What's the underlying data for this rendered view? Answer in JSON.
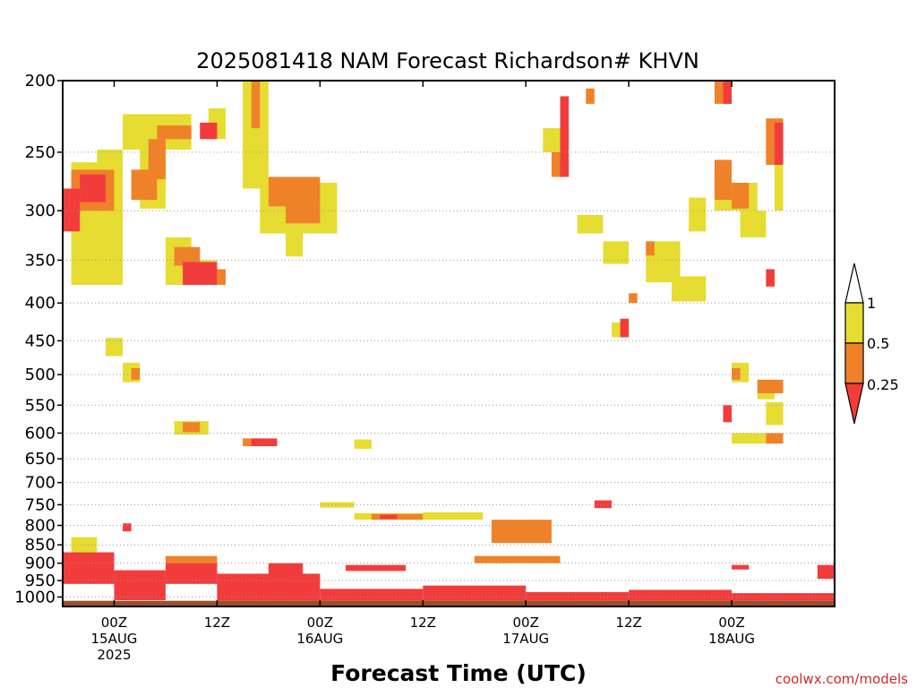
{
  "chart_data": {
    "type": "heatmap",
    "title": "2025081418 NAM Forecast Richardson# KHVN",
    "xlabel": "Forecast Time (UTC)",
    "ylabel": "",
    "y_scale": "log",
    "y_inverted": true,
    "y_range": [
      200,
      1030
    ],
    "x_range": [
      "2025-08-14T18Z",
      "2025-08-18T12Z"
    ],
    "y_ticks": [
      200,
      250,
      300,
      350,
      400,
      450,
      500,
      550,
      600,
      650,
      700,
      750,
      800,
      850,
      900,
      950,
      1000
    ],
    "y_tick_labels": [
      "200",
      "250",
      "300",
      "350",
      "400",
      "450",
      "500",
      "550",
      "600",
      "650",
      "700",
      "750",
      "800",
      "850",
      "900",
      "950",
      "1000"
    ],
    "x_ticks": [
      {
        "time": "2025-08-15T00Z",
        "label1": "00Z",
        "label2": "15AUG",
        "label3": "2025"
      },
      {
        "time": "2025-08-15T12Z",
        "label1": "12Z",
        "label2": "",
        "label3": ""
      },
      {
        "time": "2025-08-16T00Z",
        "label1": "00Z",
        "label2": "16AUG",
        "label3": ""
      },
      {
        "time": "2025-08-16T12Z",
        "label1": "12Z",
        "label2": "",
        "label3": ""
      },
      {
        "time": "2025-08-17T00Z",
        "label1": "00Z",
        "label2": "17AUG",
        "label3": ""
      },
      {
        "time": "2025-08-17T12Z",
        "label1": "12Z",
        "label2": "",
        "label3": ""
      },
      {
        "time": "2025-08-18T00Z",
        "label1": "00Z",
        "label2": "18AUG",
        "label3": ""
      }
    ],
    "grid": "horizontal dotted",
    "legend": {
      "placement": "right",
      "tick_labels": [
        "1",
        "0.5",
        "0.25"
      ],
      "colors": {
        "lt_0.25": "#f23c3c",
        "0.25_0.5": "#ef8228",
        "0.5_1": "#e6dc32",
        "gt_1": "#ffffff"
      }
    },
    "ground_color": "#96502a",
    "series": [
      {
        "class": "0.5_1",
        "regions": [
          {
            "t": [
              "2025-08-14T19Z",
              "2025-08-15T01Z"
            ],
            "p": [
              258,
              378
            ]
          },
          {
            "t": [
              "2025-08-14T22Z",
              "2025-08-15T01Z"
            ],
            "p": [
              248,
              262
            ]
          },
          {
            "t": [
              "2025-08-15T01Z",
              "2025-08-15T09Z"
            ],
            "p": [
              222,
              248
            ]
          },
          {
            "t": [
              "2025-08-15T03Z",
              "2025-08-15T06Z"
            ],
            "p": [
              240,
              298
            ]
          },
          {
            "t": [
              "2025-08-15T06Z",
              "2025-08-15T09Z"
            ],
            "p": [
              326,
              378
            ]
          },
          {
            "t": [
              "2025-08-15T08Z",
              "2025-08-15T12Z"
            ],
            "p": [
              350,
              378
            ]
          },
          {
            "t": [
              "2025-08-15T11Z",
              "2025-08-15T13Z"
            ],
            "p": [
              218,
              240
            ]
          },
          {
            "t": [
              "2025-08-15T15Z",
              "2025-08-15T18Z"
            ],
            "p": [
              200,
              280
            ]
          },
          {
            "t": [
              "2025-08-15T17Z",
              "2025-08-16T02Z"
            ],
            "p": [
              275,
              322
            ]
          },
          {
            "t": [
              "2025-08-15T20Z",
              "2025-08-15T22Z"
            ],
            "p": [
              316,
              346
            ]
          },
          {
            "t": [
              "2025-08-14T23Z",
              "2025-08-15T01Z"
            ],
            "p": [
              446,
              472
            ]
          },
          {
            "t": [
              "2025-08-15T01Z",
              "2025-08-15T03Z"
            ],
            "p": [
              482,
              512
            ]
          },
          {
            "t": [
              "2025-08-15T07Z",
              "2025-08-15T11Z"
            ],
            "p": [
              578,
              603
            ]
          },
          {
            "t": [
              "2025-08-16T00Z",
              "2025-08-16T04Z"
            ],
            "p": [
              744,
              757
            ]
          },
          {
            "t": [
              "2025-08-16T04Z",
              "2025-08-16T12Z"
            ],
            "p": [
              770,
              786
            ]
          },
          {
            "t": [
              "2025-08-16T12Z",
              "2025-08-16T19Z"
            ],
            "p": [
              768,
              786
            ]
          },
          {
            "t": [
              "2025-08-17T02Z",
              "2025-08-17T05Z"
            ],
            "p": [
              232,
              250
            ]
          },
          {
            "t": [
              "2025-08-17T06Z",
              "2025-08-17T09Z"
            ],
            "p": [
              304,
              322
            ]
          },
          {
            "t": [
              "2025-08-17T09Z",
              "2025-08-17T12Z"
            ],
            "p": [
              330,
              354
            ]
          },
          {
            "t": [
              "2025-08-17T14Z",
              "2025-08-17T18Z"
            ],
            "p": [
              330,
              375
            ]
          },
          {
            "t": [
              "2025-08-17T17Z",
              "2025-08-17T21Z"
            ],
            "p": [
              368,
              398
            ]
          },
          {
            "t": [
              "2025-08-17T19Z",
              "2025-08-17T21Z"
            ],
            "p": [
              288,
              320
            ]
          },
          {
            "t": [
              "2025-08-17T22Z",
              "2025-08-18T03Z"
            ],
            "p": [
              275,
              300
            ]
          },
          {
            "t": [
              "2025-08-18T01Z",
              "2025-08-18T04Z"
            ],
            "p": [
              300,
              326
            ]
          },
          {
            "t": [
              "2025-08-18T05Z",
              "2025-08-18T06Z"
            ],
            "p": [
              250,
              300
            ]
          },
          {
            "t": [
              "2025-08-18T00Z",
              "2025-08-18T02Z"
            ],
            "p": [
              482,
              512
            ]
          },
          {
            "t": [
              "2025-08-18T03Z",
              "2025-08-18T05Z"
            ],
            "p": [
              508,
              540
            ]
          },
          {
            "t": [
              "2025-08-18T04Z",
              "2025-08-18T06Z"
            ],
            "p": [
              545,
              585
            ]
          },
          {
            "t": [
              "2025-08-18T00Z",
              "2025-08-18T04Z"
            ],
            "p": [
              600,
              620
            ]
          },
          {
            "t": [
              "2025-08-17T10Z",
              "2025-08-17T12Z"
            ],
            "p": [
              425,
              445
            ]
          },
          {
            "t": [
              "2025-08-14T19Z",
              "2025-08-14T22Z"
            ],
            "p": [
              830,
              905
            ]
          },
          {
            "t": [
              "2025-08-16T04Z",
              "2025-08-16T06Z"
            ],
            "p": [
              612,
              630
            ]
          }
        ]
      },
      {
        "class": "0.25_0.5",
        "regions": [
          {
            "t": [
              "2025-08-14T19Z",
              "2025-08-15T00Z"
            ],
            "p": [
              264,
              300
            ]
          },
          {
            "t": [
              "2025-08-15T02Z",
              "2025-08-15T05Z"
            ],
            "p": [
              264,
              290
            ]
          },
          {
            "t": [
              "2025-08-15T05Z",
              "2025-08-15T09Z"
            ],
            "p": [
              230,
              240
            ]
          },
          {
            "t": [
              "2025-08-15T04Z",
              "2025-08-15T06Z"
            ],
            "p": [
              240,
              272
            ]
          },
          {
            "t": [
              "2025-08-15T07Z",
              "2025-08-15T10Z"
            ],
            "p": [
              336,
              356
            ]
          },
          {
            "t": [
              "2025-08-15T12Z",
              "2025-08-15T13Z"
            ],
            "p": [
              360,
              378
            ]
          },
          {
            "t": [
              "2025-08-15T16Z",
              "2025-08-15T17Z"
            ],
            "p": [
              200,
              232
            ]
          },
          {
            "t": [
              "2025-08-15T18Z",
              "2025-08-16T00Z"
            ],
            "p": [
              270,
              296
            ]
          },
          {
            "t": [
              "2025-08-15T20Z",
              "2025-08-16T00Z"
            ],
            "p": [
              296,
              312
            ]
          },
          {
            "t": [
              "2025-08-15T02Z",
              "2025-08-15T03Z"
            ],
            "p": [
              490,
              508
            ]
          },
          {
            "t": [
              "2025-08-15T08Z",
              "2025-08-15T10Z"
            ],
            "p": [
              580,
              598
            ]
          },
          {
            "t": [
              "2025-08-15T15Z",
              "2025-08-15T17Z"
            ],
            "p": [
              610,
              625
            ]
          },
          {
            "t": [
              "2025-08-16T06Z",
              "2025-08-16T12Z"
            ],
            "p": [
              772,
              786
            ]
          },
          {
            "t": [
              "2025-08-16T20Z",
              "2025-08-17T03Z"
            ],
            "p": [
              786,
              845
            ]
          },
          {
            "t": [
              "2025-08-17T03Z",
              "2025-08-17T05Z"
            ],
            "p": [
              250,
              270
            ]
          },
          {
            "t": [
              "2025-08-17T07Z",
              "2025-08-17T08Z"
            ],
            "p": [
              205,
              215
            ]
          },
          {
            "t": [
              "2025-08-17T12Z",
              "2025-08-17T13Z"
            ],
            "p": [
              388,
              400
            ]
          },
          {
            "t": [
              "2025-08-17T14Z",
              "2025-08-17T15Z"
            ],
            "p": [
              330,
              345
            ]
          },
          {
            "t": [
              "2025-08-17T22Z",
              "2025-08-18T00Z"
            ],
            "p": [
              256,
              290
            ]
          },
          {
            "t": [
              "2025-08-18T00Z",
              "2025-08-18T02Z"
            ],
            "p": [
              275,
              298
            ]
          },
          {
            "t": [
              "2025-08-18T03Z",
              "2025-08-18T06Z"
            ],
            "p": [
              508,
              530
            ]
          },
          {
            "t": [
              "2025-08-18T04Z",
              "2025-08-18T06Z"
            ],
            "p": [
              225,
              260
            ]
          },
          {
            "t": [
              "2025-08-18T04Z",
              "2025-08-18T06Z"
            ],
            "p": [
              600,
              620
            ]
          },
          {
            "t": [
              "2025-08-17T22Z",
              "2025-08-18T00Z"
            ],
            "p": [
              200,
              215
            ]
          },
          {
            "t": [
              "2025-08-18T00Z",
              "2025-08-18T01Z"
            ],
            "p": [
              490,
              508
            ]
          },
          {
            "t": [
              "2025-08-15T06Z",
              "2025-08-15T12Z"
            ],
            "p": [
              880,
              920
            ]
          },
          {
            "t": [
              "2025-08-16T18Z",
              "2025-08-17T04Z"
            ],
            "p": [
              880,
              900
            ]
          }
        ]
      },
      {
        "class": "lt_0.25",
        "regions": [
          {
            "t": [
              "2025-08-14T20Z",
              "2025-08-14T23Z"
            ],
            "p": [
              268,
              292
            ]
          },
          {
            "t": [
              "2025-08-14T18Z",
              "2025-08-14T20Z"
            ],
            "p": [
              280,
              320
            ]
          },
          {
            "t": [
              "2025-08-15T08Z",
              "2025-08-15T12Z"
            ],
            "p": [
              352,
              378
            ]
          },
          {
            "t": [
              "2025-08-15T10Z",
              "2025-08-15T12Z"
            ],
            "p": [
              228,
              240
            ]
          },
          {
            "t": [
              "2025-08-15T16Z",
              "2025-08-15T19Z"
            ],
            "p": [
              610,
              625
            ]
          },
          {
            "t": [
              "2025-08-16T07Z",
              "2025-08-16T09Z"
            ],
            "p": [
              774,
              784
            ]
          },
          {
            "t": [
              "2025-08-17T04Z",
              "2025-08-17T05Z"
            ],
            "p": [
              210,
              270
            ]
          },
          {
            "t": [
              "2025-08-17T11Z",
              "2025-08-17T12Z"
            ],
            "p": [
              420,
              445
            ]
          },
          {
            "t": [
              "2025-08-17T08Z",
              "2025-08-17T10Z"
            ],
            "p": [
              740,
              758
            ]
          },
          {
            "t": [
              "2025-08-17T23Z",
              "2025-08-18T00Z"
            ],
            "p": [
              200,
              215
            ]
          },
          {
            "t": [
              "2025-08-18T05Z",
              "2025-08-18T06Z"
            ],
            "p": [
              228,
              260
            ]
          },
          {
            "t": [
              "2025-08-18T04Z",
              "2025-08-18T05Z"
            ],
            "p": [
              360,
              380
            ]
          },
          {
            "t": [
              "2025-08-17T23Z",
              "2025-08-18T00Z"
            ],
            "p": [
              550,
              580
            ]
          },
          {
            "t": [
              "2025-08-14T18Z",
              "2025-08-15T00Z"
            ],
            "p": [
              870,
              960
            ]
          },
          {
            "t": [
              "2025-08-15T00Z",
              "2025-08-15T06Z"
            ],
            "p": [
              920,
              1010
            ]
          },
          {
            "t": [
              "2025-08-15T06Z",
              "2025-08-15T12Z"
            ],
            "p": [
              900,
              960
            ]
          },
          {
            "t": [
              "2025-08-15T12Z",
              "2025-08-16T00Z"
            ],
            "p": [
              930,
              1012
            ]
          },
          {
            "t": [
              "2025-08-15T18Z",
              "2025-08-15T22Z"
            ],
            "p": [
              900,
              945
            ]
          },
          {
            "t": [
              "2025-08-16T00Z",
              "2025-08-16T12Z"
            ],
            "p": [
              975,
              1012
            ]
          },
          {
            "t": [
              "2025-08-16T03Z",
              "2025-08-16T10Z"
            ],
            "p": [
              905,
              922
            ]
          },
          {
            "t": [
              "2025-08-16T12Z",
              "2025-08-17T00Z"
            ],
            "p": [
              965,
              1012
            ]
          },
          {
            "t": [
              "2025-08-17T00Z",
              "2025-08-17T12Z"
            ],
            "p": [
              985,
              1012
            ]
          },
          {
            "t": [
              "2025-08-17T12Z",
              "2025-08-18T00Z"
            ],
            "p": [
              978,
              1012
            ]
          },
          {
            "t": [
              "2025-08-18T00Z",
              "2025-08-18T12Z"
            ],
            "p": [
              988,
              1012
            ]
          },
          {
            "t": [
              "2025-08-18T10Z",
              "2025-08-18T12Z"
            ],
            "p": [
              905,
              945
            ]
          },
          {
            "t": [
              "2025-08-18T00Z",
              "2025-08-18T02Z"
            ],
            "p": [
              905,
              918
            ]
          },
          {
            "t": [
              "2025-08-15T01Z",
              "2025-08-15T02Z"
            ],
            "p": [
              795,
              815
            ]
          }
        ]
      }
    ]
  }
}
